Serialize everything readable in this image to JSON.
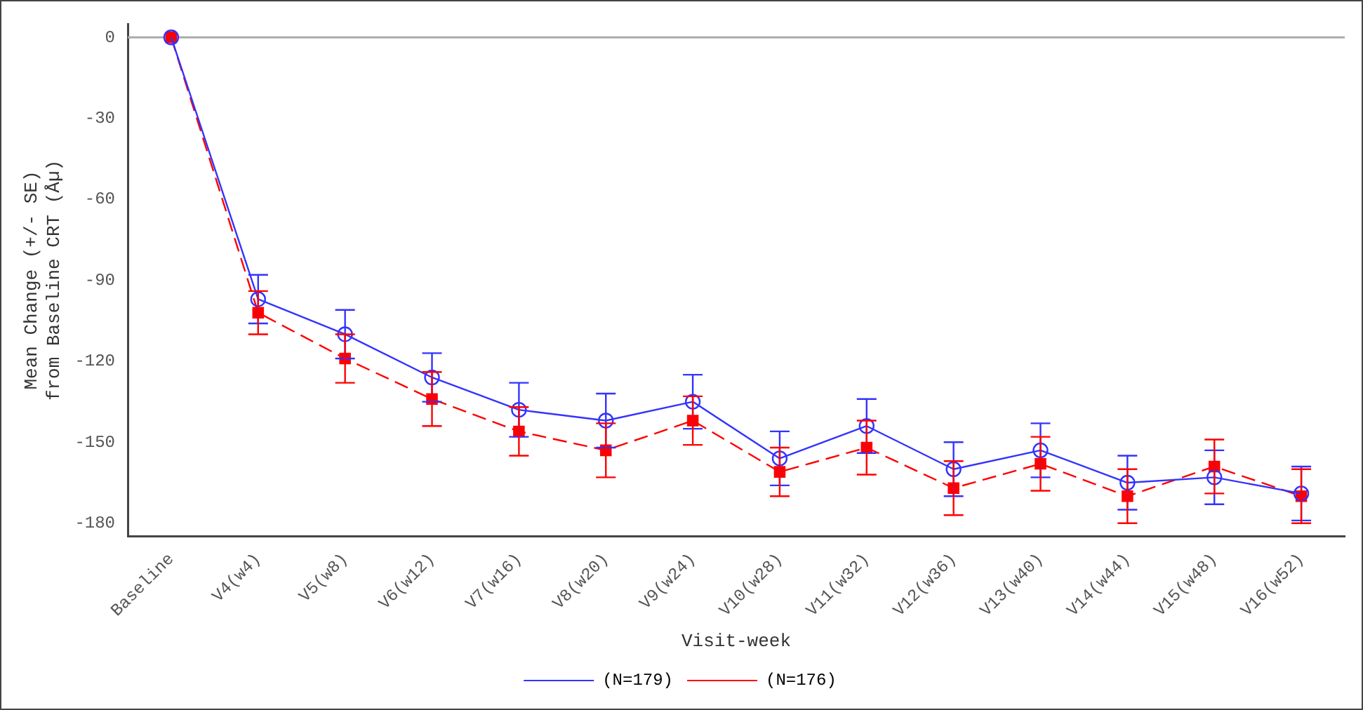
{
  "chart_data": {
    "type": "line",
    "xlabel": "Visit-week",
    "ylabel": "Mean Change (+/- SE)\nfrom Baseline CRT (Åµ)",
    "categories": [
      "Baseline",
      "V4(w4)",
      "V5(w8)",
      "V6(w12)",
      "V7(w16)",
      "V8(w20)",
      "V9(w24)",
      "V10(w28)",
      "V11(w32)",
      "V12(w36)",
      "V13(w40)",
      "V14(w44)",
      "V15(w48)",
      "V16(w52)"
    ],
    "series": [
      {
        "name": "(N=179)",
        "color": "#3333ff",
        "marker": "circle",
        "line_style": "solid",
        "values": [
          0,
          -97,
          -110,
          -126,
          -138,
          -142,
          -135,
          -156,
          -144,
          -160,
          -153,
          -165,
          -163,
          -169
        ],
        "errors": [
          null,
          9,
          9,
          9,
          10,
          10,
          10,
          10,
          10,
          10,
          10,
          10,
          10,
          10
        ]
      },
      {
        "name": "(N=176)",
        "color": "#ff0000",
        "marker": "square",
        "line_style": "dashed",
        "values": [
          0,
          -102,
          -119,
          -134,
          -146,
          -153,
          -142,
          -161,
          -152,
          -167,
          -158,
          -170,
          -159,
          -170
        ],
        "errors": [
          null,
          8,
          9,
          10,
          9,
          10,
          9,
          9,
          10,
          10,
          10,
          10,
          10,
          10
        ]
      }
    ],
    "ylim": [
      -185,
      5
    ],
    "yticks": [
      0,
      -30,
      -60,
      -90,
      -120,
      -150,
      -180
    ],
    "ref_lines": [
      {
        "axis": "y",
        "value": 0,
        "color": "#aaaaaa"
      }
    ],
    "grid": false,
    "legend": "bottom"
  }
}
